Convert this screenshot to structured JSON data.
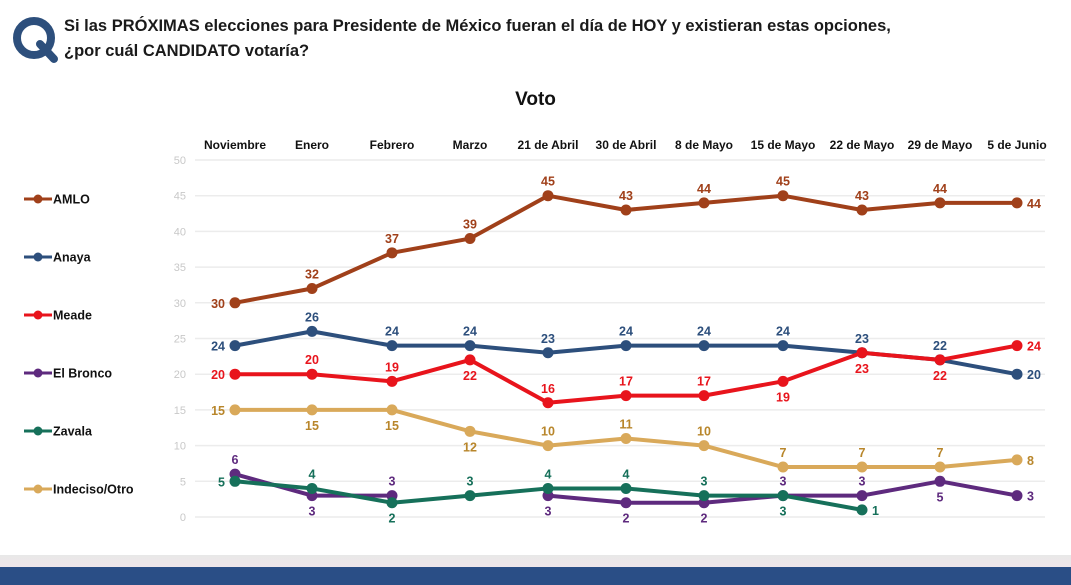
{
  "question": {
    "line1": "Si las PRÓXIMAS elecciones para Presidente de México fueran el día de HOY y existieran estas opciones,",
    "line2": "¿por cuál CANDIDATO votaría?"
  },
  "logo_letter": "Q",
  "chart_data": {
    "type": "line",
    "title": "Voto",
    "categories": [
      "Noviembre",
      "Enero",
      "Febrero",
      "Marzo",
      "21 de Abril",
      "30 de Abril",
      "8 de Mayo",
      "15 de Mayo",
      "22 de Mayo",
      "29 de Mayo",
      "5 de Junio"
    ],
    "ylim": [
      0,
      50
    ],
    "yticks": [
      0,
      5,
      10,
      15,
      20,
      25,
      30,
      35,
      40,
      45,
      50
    ],
    "grid": true,
    "legend_position": "left",
    "series": [
      {
        "name": "AMLO",
        "color": "#a0401a",
        "values": [
          30,
          32,
          37,
          39,
          45,
          43,
          44,
          45,
          43,
          44,
          44
        ]
      },
      {
        "name": "Anaya",
        "color": "#2d4f7c",
        "values": [
          24,
          26,
          24,
          24,
          23,
          24,
          24,
          24,
          23,
          22,
          20
        ]
      },
      {
        "name": "Meade",
        "color": "#e8141c",
        "values": [
          20,
          20,
          19,
          22,
          16,
          17,
          17,
          19,
          23,
          22,
          24
        ]
      },
      {
        "name": "El Bronco",
        "color": "#5e2a7e",
        "values": [
          6,
          3,
          3,
          null,
          3,
          2,
          2,
          3,
          3,
          5,
          3
        ]
      },
      {
        "name": "Zavala",
        "color": "#16705a",
        "values": [
          5,
          4,
          2,
          3,
          4,
          4,
          3,
          3,
          1,
          null,
          null
        ]
      },
      {
        "name": "Indeciso/Otro",
        "color": "#d9a95a",
        "label_color": "#b8862b",
        "values": [
          15,
          15,
          15,
          12,
          10,
          11,
          10,
          7,
          7,
          7,
          8
        ]
      }
    ]
  }
}
